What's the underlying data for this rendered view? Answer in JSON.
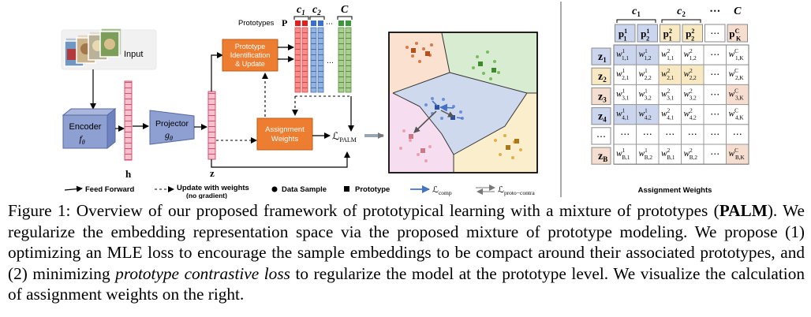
{
  "diagram": {
    "input_label": "Input",
    "encoder": {
      "label": "Encoder",
      "fn": "f",
      "sub": "θ"
    },
    "projector": {
      "label": "Projector",
      "fn": "g",
      "sub": "θ"
    },
    "h_label": "h",
    "z_label": "z",
    "prototypes_label": "Prototypes",
    "prototypes_symbol": "P",
    "class_labels": [
      {
        "base": "c",
        "sub": "1"
      },
      {
        "base": "c",
        "sub": "2"
      },
      {
        "base": "C",
        "sub": ""
      }
    ],
    "dots": "⋯",
    "vdots": "…",
    "proto_box": [
      "Prototype",
      "Identification",
      "& Update"
    ],
    "assign_box": [
      "Assignment",
      "Weights"
    ],
    "loss": {
      "base": "ℒ",
      "sub": "PALM"
    },
    "legend": {
      "feed_forward": "Feed Forward",
      "update_line1": "Update with weights",
      "update_line2": "(no gradient)",
      "data_sample": "Data Sample",
      "prototype": "Prototype",
      "comp": {
        "base": "ℒ",
        "sub": "comp"
      },
      "proto_contra": {
        "base": "ℒ",
        "sub": "proto−contra"
      }
    }
  },
  "matrix": {
    "class_labels": [
      {
        "base": "c",
        "sub": "1"
      },
      {
        "base": "c",
        "sub": "2"
      },
      {
        "base": "⋯",
        "sub": ""
      },
      {
        "base": "C",
        "sub": ""
      }
    ],
    "header": [
      {
        "base": "p",
        "sub": "1",
        "sup": "1"
      },
      {
        "base": "p",
        "sub": "2",
        "sup": "1"
      },
      {
        "base": "p",
        "sub": "1",
        "sup": "2"
      },
      {
        "base": "p",
        "sub": "2",
        "sup": "2"
      },
      {
        "base": "⋯",
        "sub": "",
        "sup": ""
      },
      {
        "base": "p",
        "sub": "K",
        "sup": "C"
      }
    ],
    "rows": [
      {
        "z": {
          "base": "z",
          "sub": "1"
        },
        "cells": [
          {
            "sub": "1,1",
            "sup": "1"
          },
          {
            "sub": "1,2",
            "sup": "1"
          },
          {
            "sub": "1,1",
            "sup": "2"
          },
          {
            "sub": "1,2",
            "sup": "2"
          },
          {
            "dots": "⋯"
          },
          {
            "sub": "1,K",
            "sup": "C"
          }
        ]
      },
      {
        "z": {
          "base": "z",
          "sub": "2"
        },
        "cells": [
          {
            "sub": "2,1",
            "sup": "1"
          },
          {
            "sub": "2,2",
            "sup": "1"
          },
          {
            "sub": "2,1",
            "sup": "2"
          },
          {
            "sub": "2,2",
            "sup": "2"
          },
          {
            "dots": "⋯"
          },
          {
            "sub": "2,K",
            "sup": "C"
          }
        ]
      },
      {
        "z": {
          "base": "z",
          "sub": "3"
        },
        "cells": [
          {
            "sub": "3,1",
            "sup": "1"
          },
          {
            "sub": "3,2",
            "sup": "1"
          },
          {
            "sub": "3,1",
            "sup": "2"
          },
          {
            "sub": "3,2",
            "sup": "2"
          },
          {
            "dots": "⋯"
          },
          {
            "sub": "3,K",
            "sup": "C"
          }
        ]
      },
      {
        "z": {
          "base": "z",
          "sub": "4"
        },
        "cells": [
          {
            "sub": "4,1",
            "sup": "1"
          },
          {
            "sub": "4,2",
            "sup": "1"
          },
          {
            "sub": "4,1",
            "sup": "2"
          },
          {
            "sub": "4,2",
            "sup": "2"
          },
          {
            "dots": "⋯"
          },
          {
            "sub": "4,K",
            "sup": "C"
          }
        ]
      },
      {
        "z": {
          "base": "⋯",
          "sub": ""
        },
        "cells": [
          {
            "dots": "⋯"
          },
          {
            "dots": "⋯"
          },
          {
            "dots": "⋯"
          },
          {
            "dots": "⋯"
          },
          {
            "dots": "⋯"
          },
          {
            "dots": "⋯"
          }
        ]
      },
      {
        "z": {
          "base": "z",
          "sub": "B"
        },
        "cells": [
          {
            "sub": "B,1",
            "sup": "1"
          },
          {
            "sub": "B,2",
            "sup": "1"
          },
          {
            "sub": "B,1",
            "sup": "2"
          },
          {
            "sub": "B,2",
            "sup": "2"
          },
          {
            "dots": "⋯"
          },
          {
            "sub": "B,K",
            "sup": "C"
          }
        ]
      }
    ],
    "cell_base": "w",
    "title": "Assignment Weights"
  },
  "colors": {
    "blue_fill": "#cbd6ee",
    "yellow_fill": "#f8e9c3",
    "peach_fill": "#f5ddd0",
    "orange": "#ed7d31",
    "red_strip": "#ff8080",
    "blue_strip": "#8fb3e3",
    "green_strip": "#a8d08d"
  },
  "caption": {
    "label": "Figure 1:",
    "sentence1_a": "Overview of our proposed framework of prototypical learning with a mixture of prototypes (",
    "sentence1_bold": "PALM",
    "sentence1_b": "). We regularize the embedding representation space via the proposed mixture of prototype modeling. We propose (1) optimizing an MLE loss to encourage the sample embeddings to be compact around their associated prototypes, and (2) minimizing ",
    "sentence1_italic": "prototype contrastive loss",
    "sentence1_c": " to regularize the model at the prototype level. We visualize the calculation of assignment weights on the right."
  }
}
